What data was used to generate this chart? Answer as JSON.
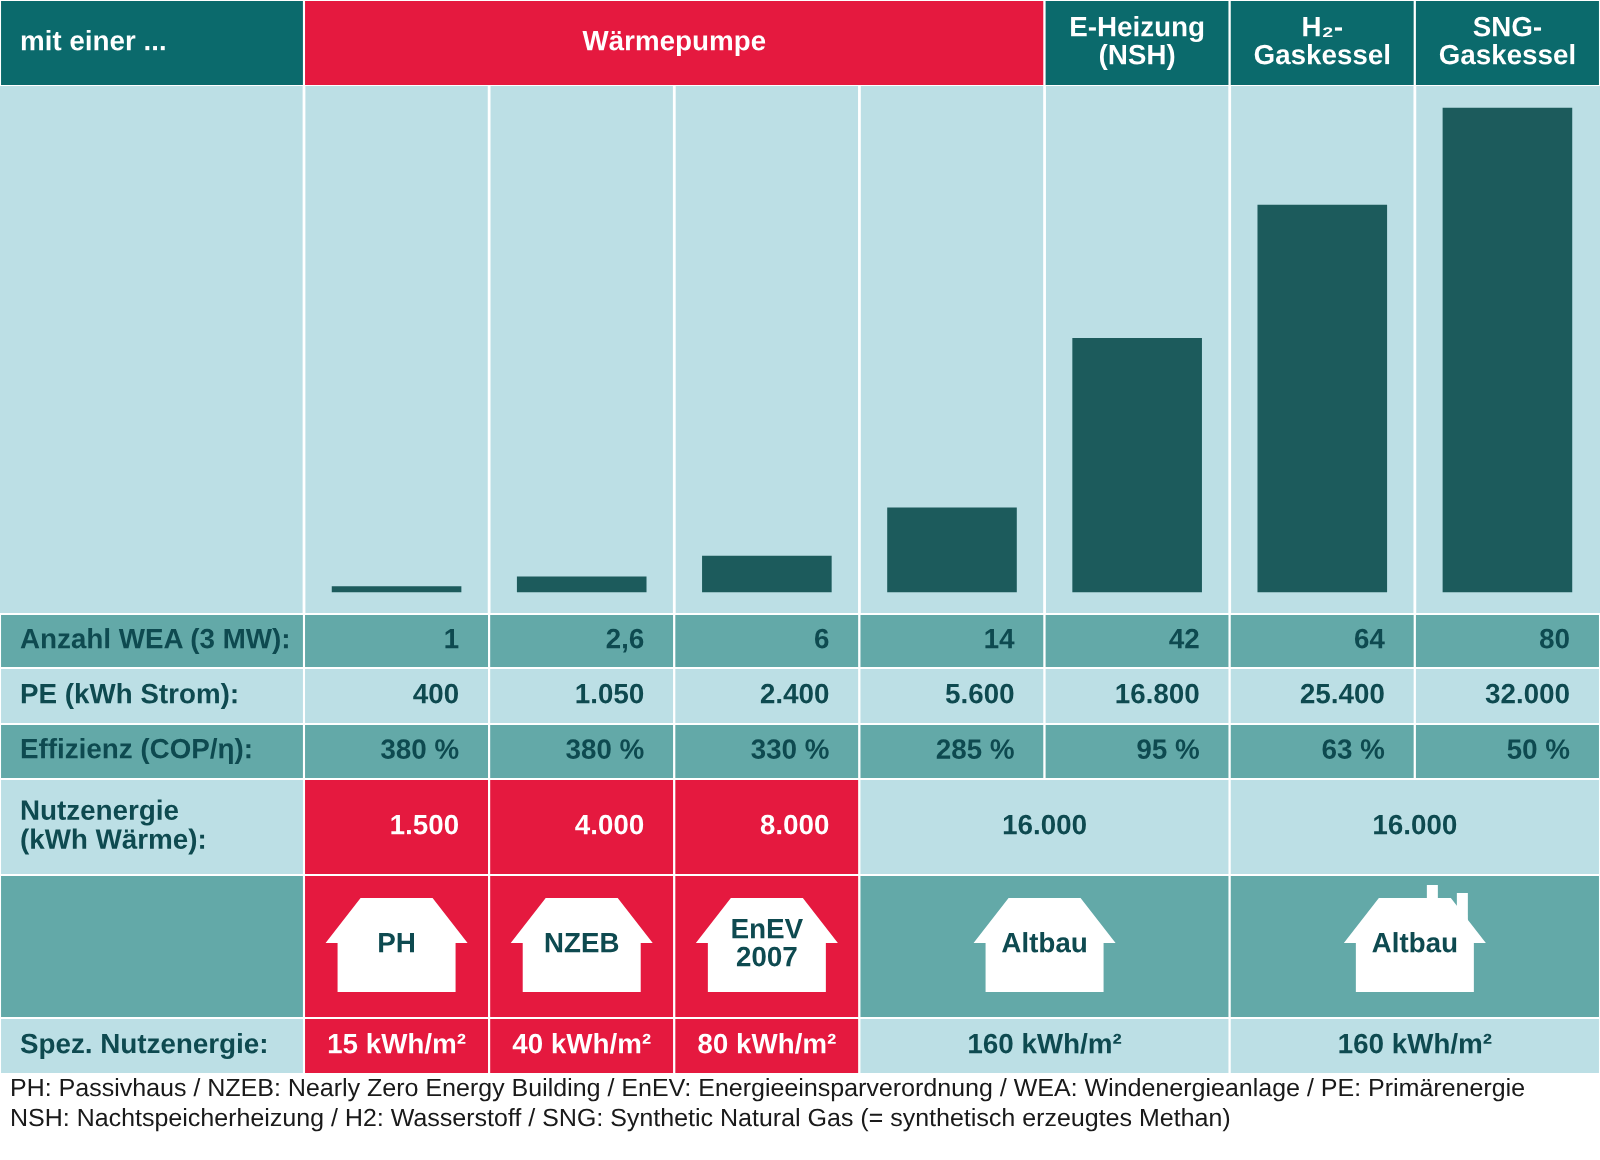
{
  "chart_data": [
    {
      "type": "other",
      "ylabel": "mit einer ...",
      "categories": [
        "Wärmepumpe",
        null,
        null,
        null,
        "E-Heizung\n(NSH)",
        "H₂-\nGaskessel",
        "SNG-\nGaskessel"
      ],
      "colors": [
        "#e5193f",
        "#e5193f",
        "#e5193f",
        "#e5193f",
        "#0b6a6c",
        "#0b6a6c",
        "#0b6a6c"
      ]
    },
    {
      "type": "bar",
      "categories": [
        null,
        null,
        null,
        null,
        null,
        null,
        null
      ],
      "values": [
        1,
        2.6,
        6,
        14,
        42,
        64,
        80
      ],
      "value_labels": [
        "1",
        "2,6",
        "6",
        "14",
        "42",
        "64",
        "80"
      ],
      "color": "#1c5b5c",
      "ylabel": "Anzahl WEA (3 MW):",
      "grid": "x"
    },
    {
      "type": "other",
      "ylabel": "PE (kWh Strom):",
      "values": [
        400,
        1050,
        2400,
        5600,
        16800,
        25400,
        32000
      ],
      "value_labels": [
        "400",
        "1.050",
        "2.400",
        "5.600",
        "16.800",
        "25.400",
        "32.000"
      ],
      "color": "#bcdfe5"
    },
    {
      "type": "other",
      "ylabel": "Effizienz (COP/η):",
      "values": [
        380,
        380,
        330,
        285,
        95,
        63,
        50
      ],
      "value_labels": [
        "380 %",
        "380 %",
        "330 %",
        "285 %",
        "95 %",
        "63 %",
        "50 %"
      ],
      "color": "#63a9a8"
    },
    {
      "type": "other",
      "ylabel": "Nutzenergie\n(kWh Wärme):",
      "values": [
        1500,
        4000,
        8000,
        16000,
        null,
        16000,
        null
      ],
      "value_labels": [
        "1.500",
        "4.000",
        "8.000",
        "16.000",
        null,
        "16.000",
        null
      ],
      "colors": [
        "#e5193f",
        "#e5193f",
        "#e5193f",
        "#bcdfe5",
        "#bcdfe5",
        "#bcdfe5",
        "#bcdfe5"
      ]
    },
    {
      "type": "other",
      "categories": [
        "PH",
        "NZEB",
        "EnEV\n2007",
        "Altbau",
        null,
        "Altbau",
        null
      ],
      "colors": [
        "#e5193f",
        "#e5193f",
        "#e5193f",
        "#63a9a8",
        "#63a9a8",
        "#63a9a8",
        "#63a9a8"
      ]
    },
    {
      "type": "other",
      "ylabel": "Spez. Nutzenergie:",
      "values": [
        15,
        40,
        80,
        160,
        null,
        160,
        null
      ],
      "value_labels": [
        "15 kWh/m²",
        "40 kWh/m²",
        "80 kWh/m²",
        "160 kWh/m²",
        null,
        "160 kWh/m²",
        null
      ],
      "colors": [
        "#e5193f",
        "#e5193f",
        "#e5193f",
        "#bcdfe5",
        "#bcdfe5",
        "#bcdfe5",
        "#bcdfe5"
      ],
      "annotations": [
        "PH: Passivhaus / NZEB: Nearly Zero Energy Building / EnEV: Energieeinsparverordnung / WEA: Windenergieanlage / PE: Primärenergie",
        "NSH: Nachtspeicherheizung / H2: Wasserstoff / SNG: Synthetic Natural Gas (= synthetisch erzeugtes Methan)"
      ]
    }
  ]
}
